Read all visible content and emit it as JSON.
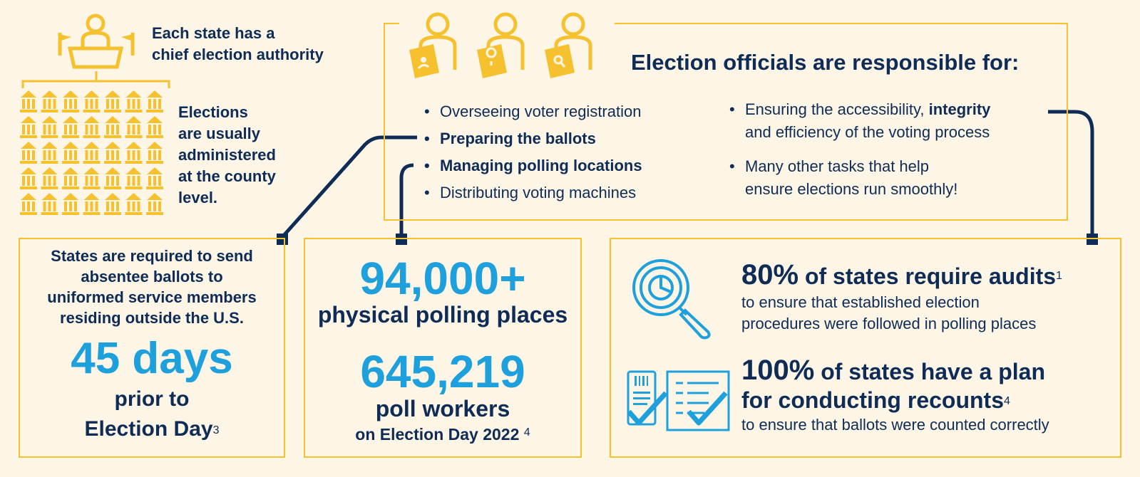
{
  "colors": {
    "background": "#fdf5e6",
    "navy": "#0e2c55",
    "blue": "#1ea0dc",
    "gold": "#f6c12e"
  },
  "top_left": {
    "chief_line1": "Each state has a",
    "chief_line2": "chief election authority",
    "elections_lines": [
      "Elections",
      "are usually",
      "administered",
      "at the county",
      "level."
    ],
    "icons": {
      "podium": "podium-person-icon",
      "county": "county-building-icon"
    }
  },
  "officials": {
    "title": "Election officials are responsible for:",
    "left_items": [
      {
        "text": "Overseeing voter registration",
        "bold": false
      },
      {
        "text": "Preparing the ballots",
        "bold": true
      },
      {
        "text": "Managing polling locations",
        "bold": true
      },
      {
        "text": "Distributing voting machines",
        "bold": false
      }
    ],
    "right_items": [
      {
        "pre": "Ensuring the accessibility, ",
        "bold": "integrity",
        "line2": "and efficiency of the voting process"
      },
      {
        "pre": "Many other tasks that help",
        "bold": "",
        "line2": "ensure elections run smoothly!"
      }
    ]
  },
  "absentee": {
    "text_lines": [
      "States are required to send",
      "absentee ballots to",
      "uniformed service members",
      "residing outside the U.S."
    ],
    "big": "45 days",
    "caption1": "prior to",
    "caption2": "Election Day",
    "footnote": "3"
  },
  "polling": {
    "num1": "94,000+",
    "cap1": "physical polling places",
    "num2": "645,219",
    "cap2": "poll workers",
    "cap3": "on Election Day 2022",
    "footnote": "4"
  },
  "audits": {
    "pct": "80%",
    "headline": " of states require audits",
    "footnote": "1",
    "sub_lines": [
      "to ensure that established election",
      "procedures were followed in polling places"
    ]
  },
  "recounts": {
    "pct": "100%",
    "headline1": " of states have a plan",
    "headline2": "for conducting recounts",
    "footnote": "4",
    "sub": "to ensure that ballots were counted correctly"
  }
}
